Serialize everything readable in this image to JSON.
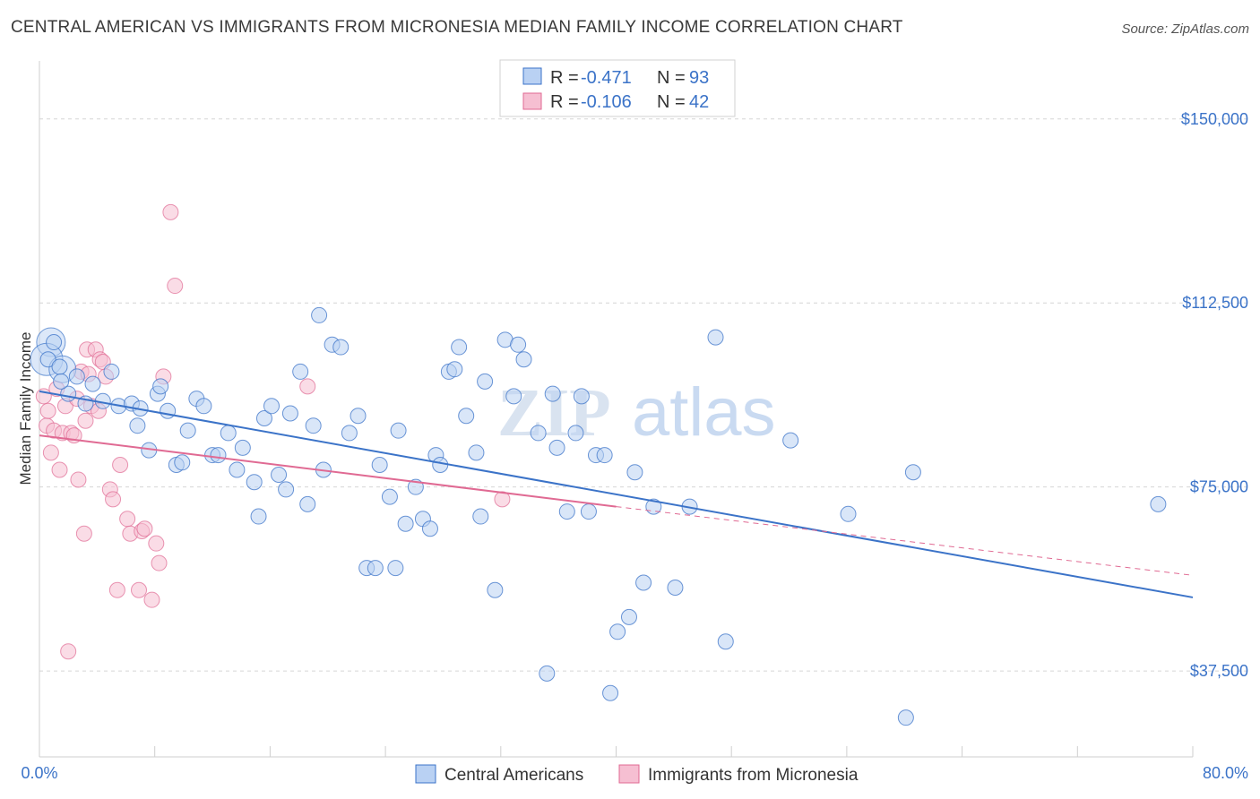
{
  "title": "CENTRAL AMERICAN VS IMMIGRANTS FROM MICRONESIA MEDIAN FAMILY INCOME CORRELATION CHART",
  "source": "Source: ZipAtlas.com",
  "watermark": {
    "zip": "ZIP",
    "atlas": "atlas"
  },
  "colors": {
    "blue": "#3b73c8",
    "blue_fill": "#b9d1f3",
    "pink": "#e06a93",
    "pink_fill": "#f6bfd2"
  },
  "chart_data": {
    "type": "scatter",
    "ylabel": "Median Family Income",
    "xlim": [
      0,
      80
    ],
    "ylim": [
      20000,
      160000
    ],
    "x_tick_labels": [
      "0.0%",
      "80.0%"
    ],
    "y_ticks": [
      {
        "value": 150000,
        "label": "$150,000"
      },
      {
        "value": 112500,
        "label": "$112,500"
      },
      {
        "value": 75000,
        "label": "$75,000"
      },
      {
        "value": 37500,
        "label": "$37,500"
      }
    ],
    "legend": [
      {
        "r_label": "R = ",
        "r": "-0.471",
        "n_label": "N = ",
        "n": "93"
      },
      {
        "r_label": "R = ",
        "r": "-0.106",
        "n_label": "N = ",
        "n": "42"
      }
    ],
    "series": [
      {
        "name": "Central Americans",
        "color": "blue",
        "trend": {
          "x0": 0,
          "y0": 94500,
          "x1": 80,
          "y1": 52500
        },
        "points": [
          [
            0.6,
            101000
          ],
          [
            1.0,
            104500
          ],
          [
            1.4,
            99500
          ],
          [
            2.0,
            94000
          ],
          [
            2.6,
            97500
          ],
          [
            3.2,
            92000
          ],
          [
            3.7,
            96000
          ],
          [
            4.4,
            92500
          ],
          [
            5.0,
            98500
          ],
          [
            5.5,
            91500
          ],
          [
            6.4,
            92000
          ],
          [
            6.8,
            87500
          ],
          [
            7.0,
            91000
          ],
          [
            7.6,
            82500
          ],
          [
            8.2,
            94000
          ],
          [
            8.4,
            95500
          ],
          [
            8.9,
            90500
          ],
          [
            9.5,
            79500
          ],
          [
            9.9,
            80000
          ],
          [
            10.3,
            86500
          ],
          [
            10.9,
            93000
          ],
          [
            11.4,
            91500
          ],
          [
            12.0,
            81500
          ],
          [
            12.4,
            81500
          ],
          [
            13.1,
            86000
          ],
          [
            13.7,
            78500
          ],
          [
            14.1,
            83000
          ],
          [
            14.9,
            76000
          ],
          [
            15.2,
            69000
          ],
          [
            15.6,
            89000
          ],
          [
            16.1,
            91500
          ],
          [
            16.6,
            77500
          ],
          [
            17.1,
            74500
          ],
          [
            17.4,
            90000
          ],
          [
            18.1,
            98500
          ],
          [
            18.6,
            71500
          ],
          [
            19.0,
            87500
          ],
          [
            19.4,
            110000
          ],
          [
            19.7,
            78500
          ],
          [
            20.3,
            104000
          ],
          [
            20.9,
            103500
          ],
          [
            21.5,
            86000
          ],
          [
            22.1,
            89500
          ],
          [
            22.7,
            58500
          ],
          [
            23.3,
            58500
          ],
          [
            23.6,
            79500
          ],
          [
            24.3,
            73000
          ],
          [
            24.7,
            58500
          ],
          [
            24.9,
            86500
          ],
          [
            25.4,
            67500
          ],
          [
            26.1,
            75000
          ],
          [
            26.6,
            68500
          ],
          [
            27.1,
            66500
          ],
          [
            27.5,
            81500
          ],
          [
            27.8,
            79500
          ],
          [
            28.4,
            98500
          ],
          [
            28.8,
            99000
          ],
          [
            29.1,
            103500
          ],
          [
            29.6,
            89500
          ],
          [
            30.3,
            82000
          ],
          [
            30.6,
            69000
          ],
          [
            30.9,
            96500
          ],
          [
            31.6,
            54000
          ],
          [
            32.3,
            105000
          ],
          [
            32.9,
            93500
          ],
          [
            33.2,
            104000
          ],
          [
            33.6,
            101000
          ],
          [
            34.6,
            86000
          ],
          [
            35.2,
            37000
          ],
          [
            35.6,
            94000
          ],
          [
            35.9,
            83000
          ],
          [
            36.6,
            70000
          ],
          [
            37.2,
            86000
          ],
          [
            37.6,
            93500
          ],
          [
            38.1,
            70000
          ],
          [
            38.6,
            81500
          ],
          [
            39.2,
            81500
          ],
          [
            39.6,
            33000
          ],
          [
            40.1,
            45500
          ],
          [
            40.9,
            48500
          ],
          [
            41.3,
            78000
          ],
          [
            41.9,
            55500
          ],
          [
            42.6,
            71000
          ],
          [
            44.1,
            54500
          ],
          [
            45.1,
            71000
          ],
          [
            46.9,
            105500
          ],
          [
            47.6,
            43500
          ],
          [
            52.1,
            84500
          ],
          [
            56.1,
            69500
          ],
          [
            60.1,
            28000
          ],
          [
            60.6,
            78000
          ],
          [
            77.6,
            71500
          ],
          [
            1.5,
            96500
          ]
        ],
        "big_points": [
          [
            0.8,
            104500,
            16
          ],
          [
            0.5,
            101000,
            18
          ],
          [
            1.6,
            99000,
            15
          ]
        ]
      },
      {
        "name": "Immigrants from Micronesia",
        "color": "pink",
        "trend": {
          "x0": 0,
          "y0": 85500,
          "x1": 40,
          "y1": 71000,
          "dash_x1": 80,
          "dash_y1": 57000
        },
        "points": [
          [
            0.3,
            93500
          ],
          [
            0.5,
            87500
          ],
          [
            0.6,
            90500
          ],
          [
            0.8,
            82000
          ],
          [
            1.0,
            86500
          ],
          [
            1.2,
            95000
          ],
          [
            1.4,
            78500
          ],
          [
            1.6,
            86000
          ],
          [
            1.8,
            91500
          ],
          [
            2.0,
            41500
          ],
          [
            2.2,
            86000
          ],
          [
            2.4,
            85500
          ],
          [
            2.6,
            93000
          ],
          [
            2.7,
            76500
          ],
          [
            2.9,
            98500
          ],
          [
            3.1,
            65500
          ],
          [
            3.2,
            88500
          ],
          [
            3.3,
            103000
          ],
          [
            3.4,
            98000
          ],
          [
            3.6,
            91500
          ],
          [
            3.9,
            103000
          ],
          [
            4.1,
            90500
          ],
          [
            4.2,
            101000
          ],
          [
            4.4,
            100500
          ],
          [
            4.6,
            97500
          ],
          [
            4.9,
            74500
          ],
          [
            5.1,
            72500
          ],
          [
            5.4,
            54000
          ],
          [
            5.6,
            79500
          ],
          [
            6.1,
            68500
          ],
          [
            6.3,
            65500
          ],
          [
            6.9,
            54000
          ],
          [
            7.1,
            66000
          ],
          [
            7.3,
            66500
          ],
          [
            7.8,
            52000
          ],
          [
            8.1,
            63500
          ],
          [
            8.3,
            59500
          ],
          [
            8.6,
            97500
          ],
          [
            9.1,
            131000
          ],
          [
            9.4,
            116000
          ],
          [
            18.6,
            95500
          ],
          [
            32.1,
            72500
          ]
        ]
      }
    ]
  }
}
